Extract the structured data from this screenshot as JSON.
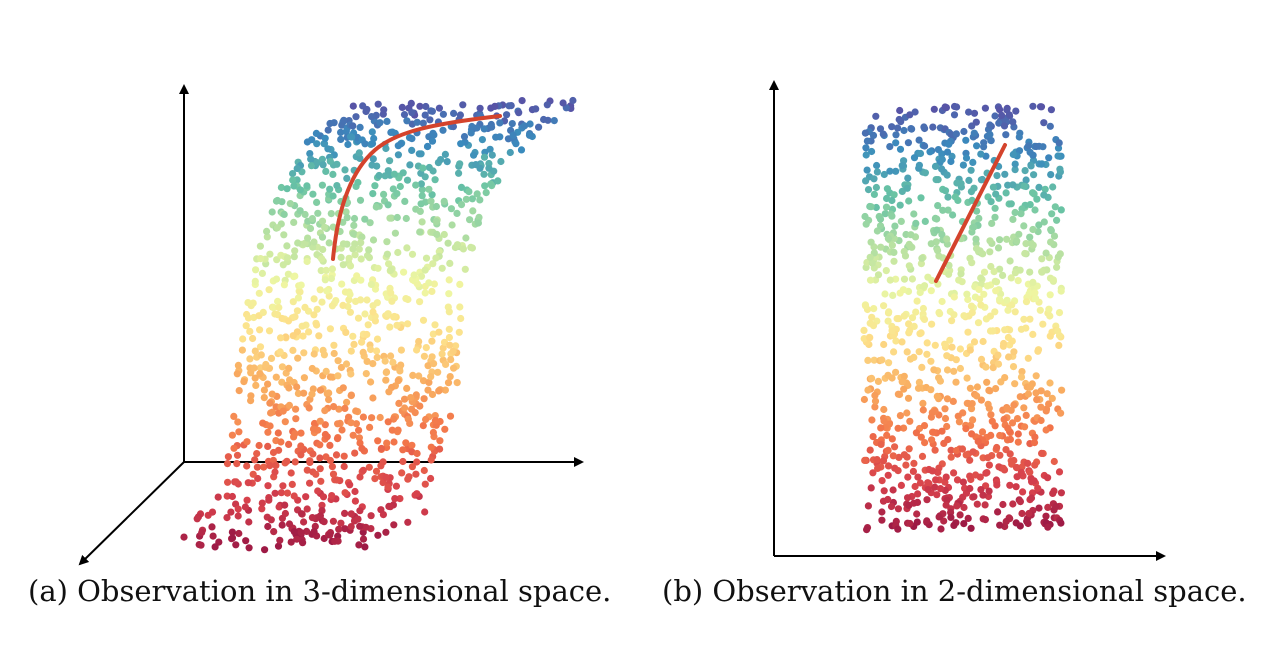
{
  "panels": [
    {
      "id": "a",
      "caption": "(a) Observation in 3-dimensional space.",
      "projection": "3d-curved-sheet",
      "colormap": "spectral"
    },
    {
      "id": "b",
      "caption": "(b) Observation in 2-dimensional space.",
      "projection": "2d-flat-rectangle",
      "colormap": "spectral"
    }
  ],
  "colors": {
    "axis": "#000000",
    "path": "#d4432c",
    "spectral": [
      "#9e1a45",
      "#d6404c",
      "#f2744a",
      "#f9ae61",
      "#fde18b",
      "#eef6a2",
      "#b5e0a2",
      "#6ac4a4",
      "#3a8bbd",
      "#5754a6"
    ]
  }
}
